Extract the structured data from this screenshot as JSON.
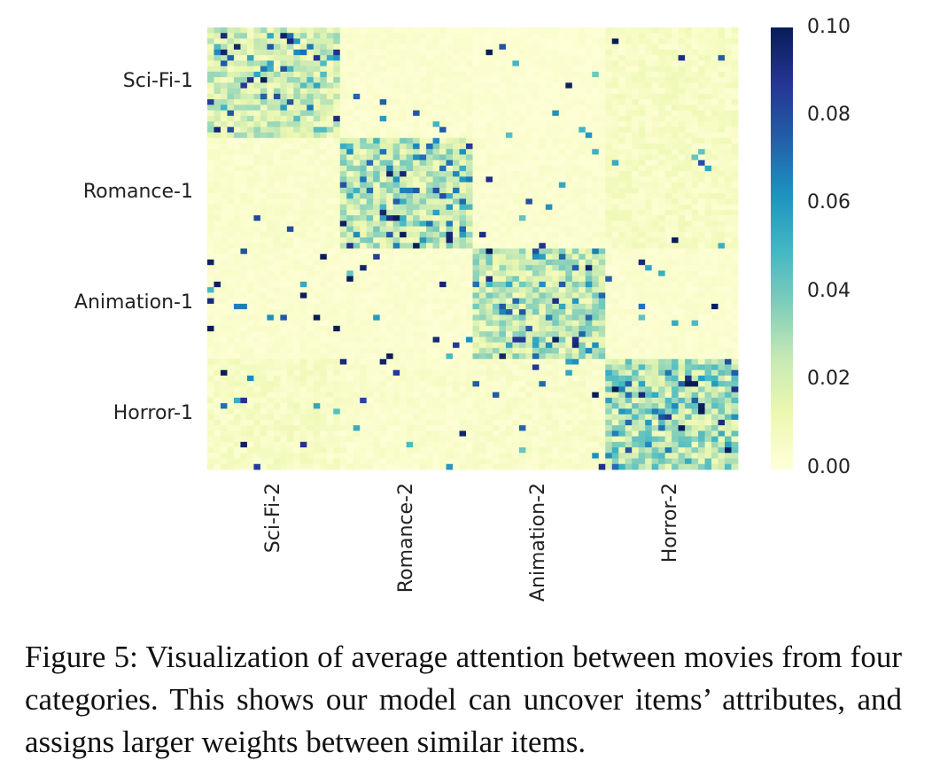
{
  "chart_data": {
    "type": "heatmap",
    "title": "",
    "xlabel": "",
    "ylabel": "",
    "row_tick_labels": [
      "Sci-Fi-1",
      "Romance-1",
      "Animation-1",
      "Horror-1"
    ],
    "col_tick_labels": [
      "Sci-Fi-2",
      "Romance-2",
      "Animation-2",
      "Horror-2"
    ],
    "grid_size": 80,
    "block_size": 20,
    "value_range": [
      0,
      0.1
    ],
    "colorbar": {
      "colormap": "YlGnBu",
      "min": 0.0,
      "max": 0.1,
      "ticks": [
        "0.00",
        "0.02",
        "0.04",
        "0.06",
        "0.08",
        "0.10"
      ],
      "tick_values": [
        0,
        0.02,
        0.04,
        0.06,
        0.08,
        0.1
      ],
      "stops": [
        "#ffffd9",
        "#edf8b1",
        "#c7e9b4",
        "#7fcdbb",
        "#41b6c4",
        "#1d91c0",
        "#225ea8",
        "#253494",
        "#081d58"
      ]
    },
    "block_mean_attention": [
      [
        0.025,
        0.004,
        0.003,
        0.008
      ],
      [
        0.005,
        0.03,
        0.004,
        0.008
      ],
      [
        0.004,
        0.004,
        0.03,
        0.004
      ],
      [
        0.008,
        0.005,
        0.006,
        0.035
      ]
    ],
    "diagonal_blocks_high": true,
    "grid": false,
    "legend": "colorbar right"
  },
  "caption": {
    "text": "Figure 5: Visualization of average attention between movies from four categories. This shows our model can uncover items’ attributes, and assigns larger weights between similar items."
  }
}
